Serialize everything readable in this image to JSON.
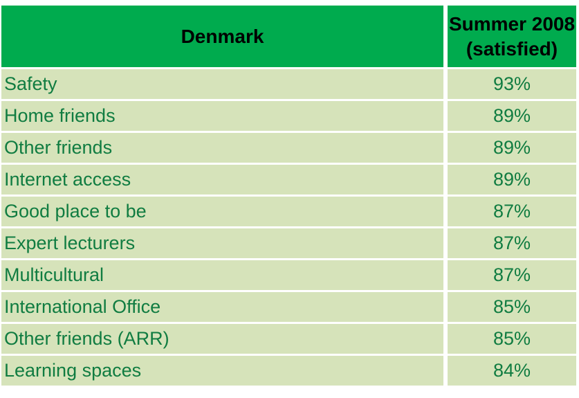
{
  "table": {
    "header": {
      "country": "Denmark",
      "period_line1": "Summer 2008",
      "period_line2": "(satisfied)"
    },
    "rows": [
      {
        "label": "Safety",
        "value": "93%"
      },
      {
        "label": "Home friends",
        "value": "89%"
      },
      {
        "label": "Other friends",
        "value": "89%"
      },
      {
        "label": "Internet access",
        "value": "89%"
      },
      {
        "label": "Good place to be",
        "value": "87%"
      },
      {
        "label": "Expert lecturers",
        "value": "87%"
      },
      {
        "label": "Multicultural",
        "value": "87%"
      },
      {
        "label": "International Office",
        "value": "85%"
      },
      {
        "label": "Other friends (ARR)",
        "value": "85%"
      },
      {
        "label": "Learning spaces",
        "value": "84%"
      }
    ]
  },
  "colors": {
    "header_bg": "#00AB4E",
    "header_text": "#000000",
    "row_bg": "#D6E3BA",
    "row_text": "#107C41",
    "divider": "#FFFFFF"
  },
  "chart_data": {
    "type": "table",
    "title": "Denmark",
    "columns": [
      "Denmark",
      "Summer 2008 (satisfied)"
    ],
    "categories": [
      "Safety",
      "Home friends",
      "Other friends",
      "Internet access",
      "Good place to be",
      "Expert lecturers",
      "Multicultural",
      "International Office",
      "Other friends (ARR)",
      "Learning spaces"
    ],
    "values_percent": [
      93,
      89,
      89,
      89,
      87,
      87,
      87,
      85,
      85,
      84
    ],
    "value_unit": "%",
    "legend_position": "none",
    "grid": "white-dividers"
  }
}
